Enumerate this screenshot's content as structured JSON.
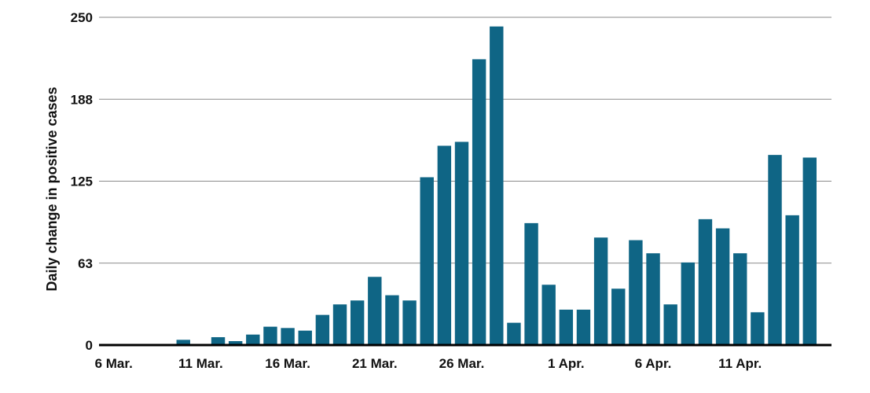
{
  "chart_data": {
    "type": "bar",
    "ylabel": "Daily change in positive cases",
    "xlabel": "",
    "title": "",
    "ylim": [
      0,
      250
    ],
    "yticks": [
      "0",
      "63",
      "125",
      "188",
      "250"
    ],
    "ytick_values": [
      0,
      62.5,
      125,
      187.5,
      250
    ],
    "grid": true,
    "bar_color": "#0f6585",
    "start_date": "2020-03-06",
    "x_tick_labels": [
      {
        "label": "6 Mar.",
        "day_index": 0
      },
      {
        "label": "11 Mar.",
        "day_index": 5
      },
      {
        "label": "16 Mar.",
        "day_index": 10
      },
      {
        "label": "21 Mar.",
        "day_index": 15
      },
      {
        "label": "26 Mar.",
        "day_index": 20
      },
      {
        "label": "1 Apr.",
        "day_index": 26
      },
      {
        "label": "6 Apr.",
        "day_index": 31
      },
      {
        "label": "11 Apr.",
        "day_index": 36
      }
    ],
    "x": [
      "6 Mar.",
      "7 Mar.",
      "8 Mar.",
      "9 Mar.",
      "10 Mar.",
      "11 Mar.",
      "12 Mar.",
      "13 Mar.",
      "14 Mar.",
      "15 Mar.",
      "16 Mar.",
      "17 Mar.",
      "18 Mar.",
      "19 Mar.",
      "20 Mar.",
      "21 Mar.",
      "22 Mar.",
      "23 Mar.",
      "24 Mar.",
      "25 Mar.",
      "26 Mar.",
      "27 Mar.",
      "28 Mar.",
      "29 Mar.",
      "30 Mar.",
      "31 Mar.",
      "1 Apr.",
      "2 Apr.",
      "3 Apr.",
      "4 Apr.",
      "5 Apr.",
      "6 Apr.",
      "7 Apr.",
      "8 Apr.",
      "9 Apr.",
      "10 Apr.",
      "11 Apr.",
      "12 Apr.",
      "13 Apr.",
      "14 Apr.",
      "15 Apr."
    ],
    "values": [
      0,
      0,
      0,
      0,
      4,
      0,
      6,
      3,
      8,
      14,
      13,
      11,
      23,
      31,
      34,
      52,
      38,
      34,
      128,
      152,
      155,
      218,
      243,
      17,
      93,
      46,
      27,
      27,
      82,
      43,
      80,
      70,
      31,
      63,
      96,
      89,
      70,
      25,
      145,
      99,
      143
    ]
  }
}
